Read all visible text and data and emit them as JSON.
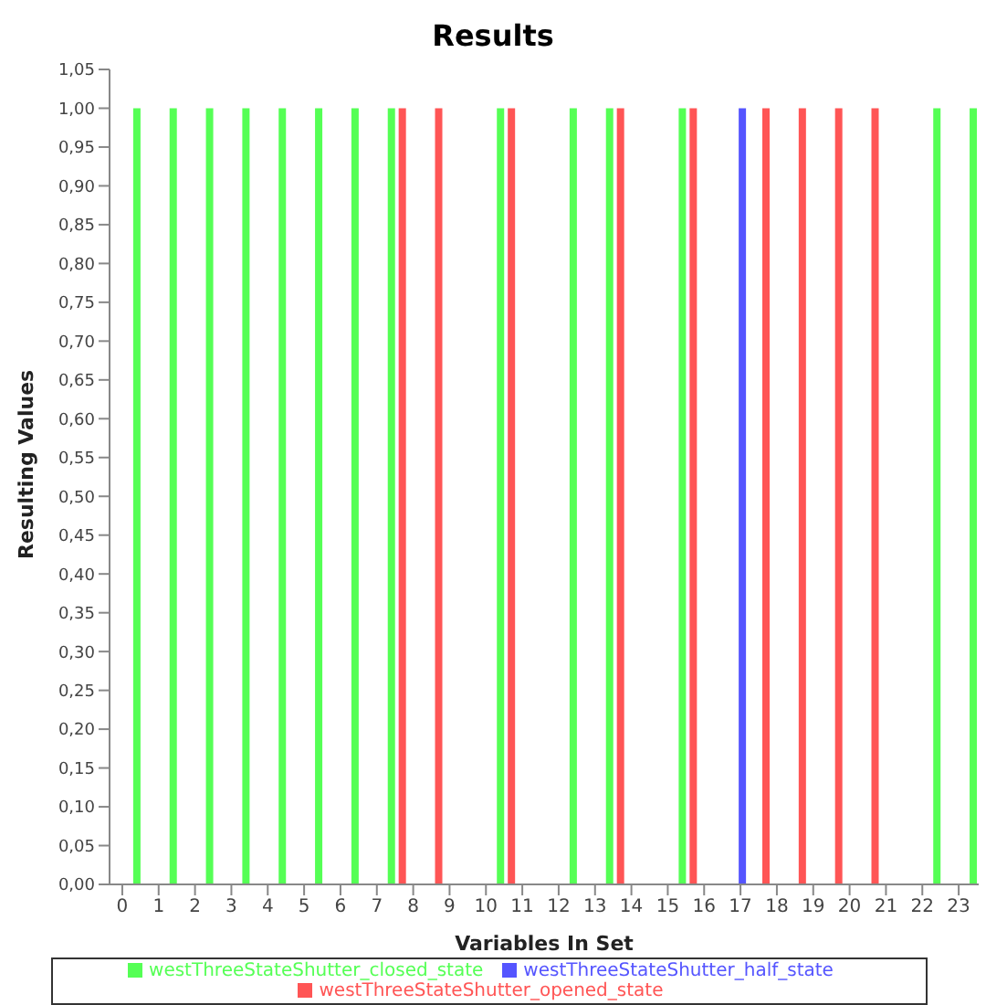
{
  "chart_data": {
    "type": "bar",
    "title": "Results",
    "xlabel": "Variables In Set",
    "ylabel": "Resulting Values",
    "series": [
      {
        "name": "westThreeStateShutter_opened_state",
        "color": "#ff5555",
        "x": [
          7.7,
          8.7,
          10.7,
          13.7,
          15.7,
          17.7,
          18.7,
          19.7,
          20.7
        ],
        "values": [
          1,
          1,
          1,
          1,
          1,
          1,
          1,
          1,
          1
        ]
      },
      {
        "name": "westThreeStateShutter_half_state",
        "color": "#5555ff",
        "x": [
          17.05
        ],
        "values": [
          1
        ]
      },
      {
        "name": "westThreeStateShutter_closed_state",
        "color": "#55ff55",
        "x": [
          0.4,
          1.4,
          2.4,
          3.4,
          4.4,
          5.4,
          6.4,
          7.4,
          10.4,
          12.4,
          13.4,
          15.4,
          22.4,
          23.4
        ],
        "values": [
          1,
          1,
          1,
          1,
          1,
          1,
          1,
          1,
          1,
          1,
          1,
          1,
          1,
          1
        ]
      }
    ],
    "xlim": [
      -0.35,
      23.55
    ],
    "xticks": [
      0,
      1,
      2,
      3,
      4,
      5,
      6,
      7,
      8,
      9,
      10,
      11,
      12,
      13,
      14,
      15,
      16,
      17,
      18,
      19,
      20,
      21,
      22,
      23
    ],
    "ylim": [
      0,
      1.05
    ],
    "yticks": [
      {
        "value": 0,
        "label": "0,00"
      },
      {
        "value": 0.05,
        "label": "0,05"
      },
      {
        "value": 0.1,
        "label": "0,10"
      },
      {
        "value": 0.15,
        "label": "0,15"
      },
      {
        "value": 0.2,
        "label": "0,20"
      },
      {
        "value": 0.25,
        "label": "0,25"
      },
      {
        "value": 0.3,
        "label": "0,30"
      },
      {
        "value": 0.35,
        "label": "0,35"
      },
      {
        "value": 0.4,
        "label": "0,40"
      },
      {
        "value": 0.45,
        "label": "0,45"
      },
      {
        "value": 0.5,
        "label": "0,50"
      },
      {
        "value": 0.55,
        "label": "0,55"
      },
      {
        "value": 0.6,
        "label": "0,60"
      },
      {
        "value": 0.65,
        "label": "0,65"
      },
      {
        "value": 0.7,
        "label": "0,70"
      },
      {
        "value": 0.75,
        "label": "0,75"
      },
      {
        "value": 0.8,
        "label": "0,80"
      },
      {
        "value": 0.85,
        "label": "0,85"
      },
      {
        "value": 0.9,
        "label": "0,90"
      },
      {
        "value": 0.95,
        "label": "0,95"
      },
      {
        "value": 1,
        "label": "1,00"
      },
      {
        "value": 1.05,
        "label": "1,05"
      }
    ],
    "grid": false,
    "legend": "bottom"
  }
}
